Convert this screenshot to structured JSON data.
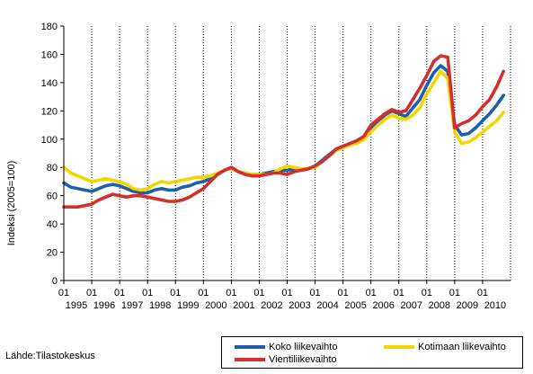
{
  "source_label": "Lähde:Tilastokeskus",
  "chart_data": {
    "type": "line",
    "title": "",
    "xlabel": "",
    "ylabel": "Indeksi (2005=100)",
    "ylim": [
      0,
      180
    ],
    "yticks": [
      0,
      20,
      40,
      60,
      80,
      100,
      120,
      140,
      160,
      180
    ],
    "grid": "vertical dotted lines at each year",
    "month_tick_label": "01",
    "years": [
      "1995",
      "1996",
      "1997",
      "1998",
      "1999",
      "2000",
      "2001",
      "2002",
      "2003",
      "2004",
      "2005",
      "2006",
      "2007",
      "2008",
      "2009",
      "2010"
    ],
    "x_end": "2010-10",
    "legend": {
      "placement": "bottom-right",
      "border": true
    },
    "x_dates": [
      "1995-01",
      "1995-04",
      "1995-07",
      "1995-10",
      "1996-01",
      "1996-04",
      "1996-07",
      "1996-10",
      "1997-01",
      "1997-04",
      "1997-07",
      "1997-10",
      "1998-01",
      "1998-04",
      "1998-07",
      "1998-10",
      "1999-01",
      "1999-04",
      "1999-07",
      "1999-10",
      "2000-01",
      "2000-04",
      "2000-07",
      "2000-10",
      "2001-01",
      "2001-04",
      "2001-07",
      "2001-10",
      "2002-01",
      "2002-04",
      "2002-07",
      "2002-10",
      "2003-01",
      "2003-04",
      "2003-07",
      "2003-10",
      "2004-01",
      "2004-04",
      "2004-07",
      "2004-10",
      "2005-01",
      "2005-04",
      "2005-07",
      "2005-10",
      "2006-01",
      "2006-04",
      "2006-07",
      "2006-10",
      "2007-01",
      "2007-04",
      "2007-07",
      "2007-10",
      "2008-01",
      "2008-04",
      "2008-07",
      "2008-10",
      "2009-01",
      "2009-04",
      "2009-07",
      "2009-10",
      "2010-01",
      "2010-04",
      "2010-07",
      "2010-10"
    ],
    "series": [
      {
        "name": "Koko liikevaihto",
        "color": "#1f5fa8",
        "values": [
          69,
          66,
          65,
          64,
          63,
          65,
          67,
          68,
          67,
          65,
          63,
          62,
          62,
          64,
          65,
          64,
          64,
          66,
          67,
          69,
          70,
          72,
          75,
          78,
          80,
          77,
          76,
          75,
          75,
          76,
          77,
          78,
          78,
          79,
          78,
          79,
          81,
          85,
          89,
          93,
          95,
          96,
          98,
          101,
          108,
          113,
          117,
          120,
          118,
          116,
          122,
          128,
          138,
          147,
          152,
          148,
          110,
          103,
          104,
          108,
          113,
          118,
          124,
          131
        ]
      },
      {
        "name": "Kotimaan liikevaihto",
        "color": "#f2d600",
        "values": [
          80,
          76,
          74,
          72,
          70,
          71,
          72,
          71,
          70,
          68,
          65,
          64,
          65,
          68,
          70,
          69,
          70,
          71,
          72,
          73,
          73,
          74,
          76,
          78,
          79,
          77,
          76,
          75,
          75,
          75,
          76,
          79,
          81,
          80,
          79,
          79,
          80,
          84,
          88,
          92,
          94,
          96,
          97,
          100,
          105,
          110,
          114,
          117,
          115,
          114,
          117,
          122,
          132,
          140,
          148,
          143,
          105,
          97,
          98,
          101,
          105,
          109,
          113,
          119
        ]
      },
      {
        "name": "Vientiliikevaihto",
        "color": "#d42e2e",
        "values": [
          52,
          52,
          52,
          53,
          54,
          57,
          59,
          61,
          60,
          59,
          60,
          60,
          59,
          58,
          57,
          56,
          56,
          57,
          59,
          62,
          65,
          70,
          75,
          78,
          80,
          77,
          75,
          74,
          74,
          75,
          76,
          76,
          75,
          77,
          78,
          79,
          81,
          84,
          88,
          93,
          95,
          97,
          99,
          102,
          110,
          114,
          118,
          121,
          119,
          120,
          128,
          136,
          145,
          155,
          159,
          158,
          108,
          111,
          113,
          117,
          123,
          128,
          137,
          148
        ]
      }
    ]
  }
}
